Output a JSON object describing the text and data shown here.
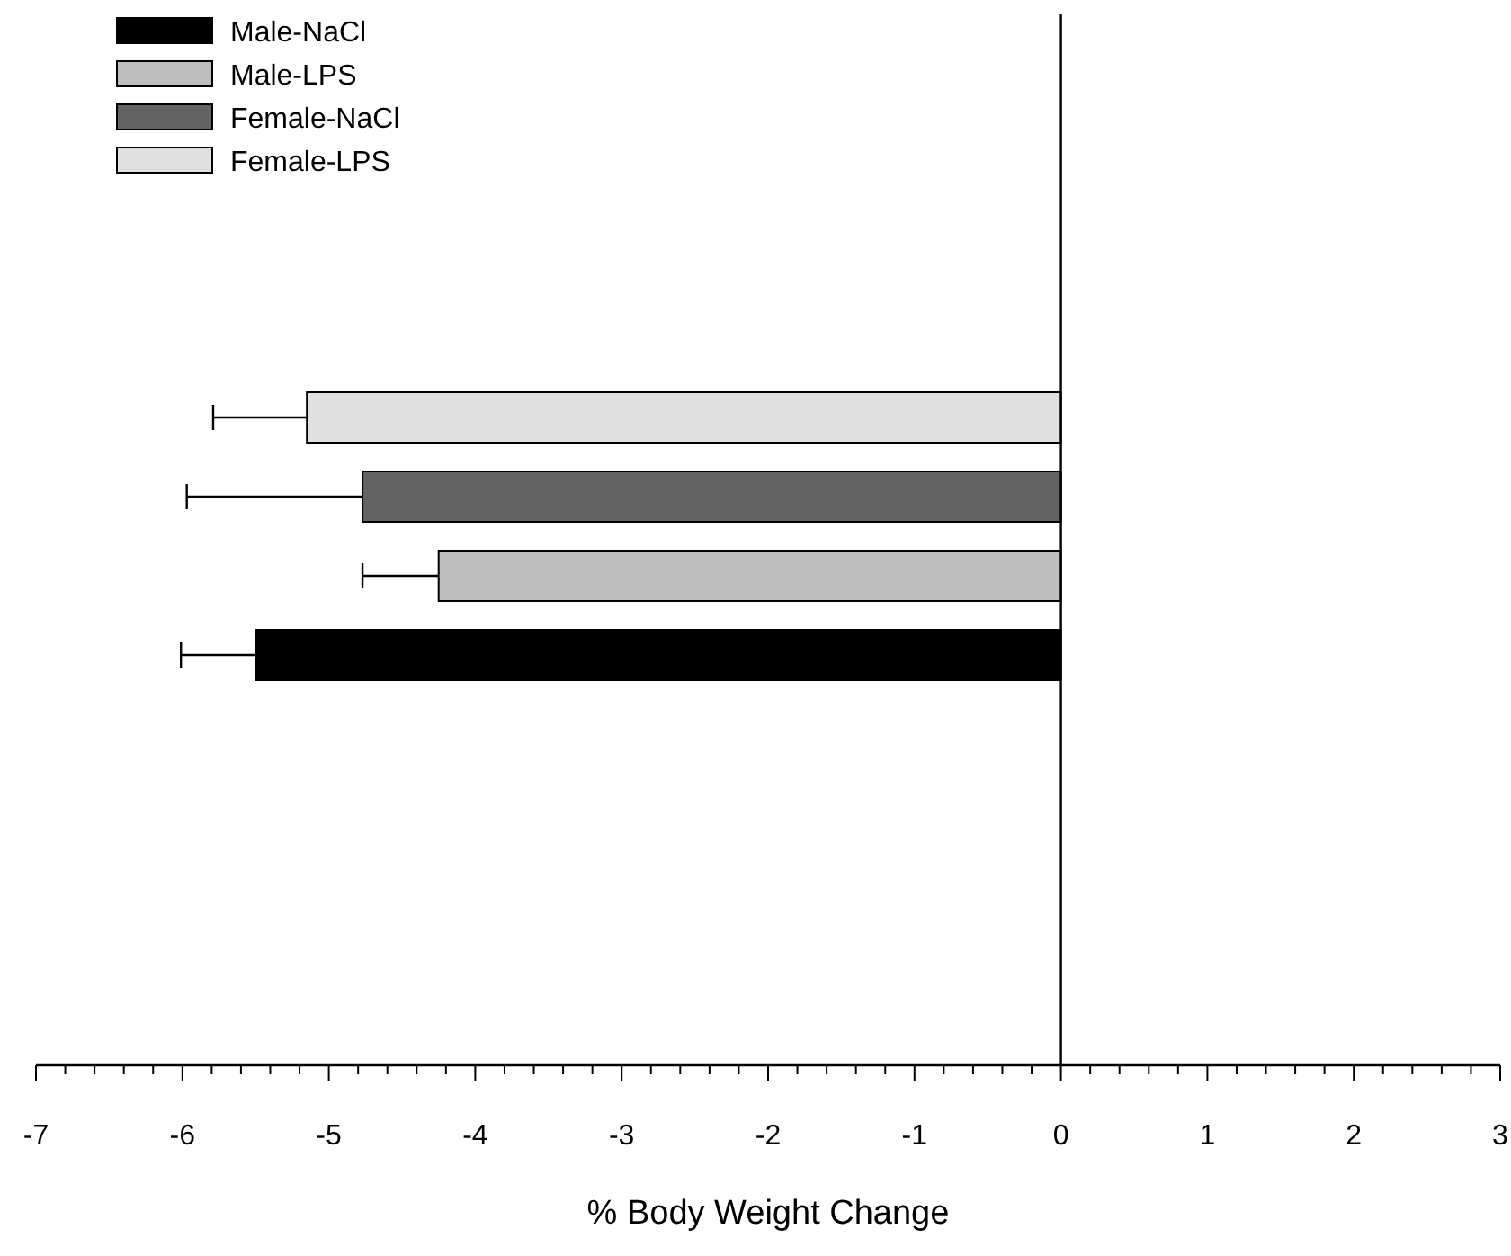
{
  "chart_data": {
    "type": "bar",
    "orientation": "horizontal",
    "xlabel": "% Body Weight Change",
    "categories": [
      null
    ],
    "legend": "top left",
    "xlim": [
      -7,
      3
    ],
    "xticks": [
      -7,
      {
        "value": -6.8,
        "label": null
      },
      {
        "value": -6.6,
        "label": null
      },
      {
        "value": -6.4,
        "label": null
      },
      {
        "value": -6.2,
        "label": null
      },
      -6,
      {
        "value": -5.8,
        "label": null
      },
      {
        "value": -5.6,
        "label": null
      },
      {
        "value": -5.4,
        "label": null
      },
      {
        "value": -5.2,
        "label": null
      },
      -5,
      {
        "value": -4.8,
        "label": null
      },
      {
        "value": -4.6,
        "label": null
      },
      {
        "value": -4.4,
        "label": null
      },
      {
        "value": -4.2,
        "label": null
      },
      -4,
      {
        "value": -3.8,
        "label": null
      },
      {
        "value": -3.6,
        "label": null
      },
      {
        "value": -3.4,
        "label": null
      },
      {
        "value": -3.2,
        "label": null
      },
      -3,
      {
        "value": -2.8,
        "label": null
      },
      {
        "value": -2.6,
        "label": null
      },
      {
        "value": -2.4,
        "label": null
      },
      {
        "value": -2.2,
        "label": null
      },
      -2,
      {
        "value": -1.8,
        "label": null
      },
      {
        "value": -1.6,
        "label": null
      },
      {
        "value": -1.4,
        "label": null
      },
      {
        "value": -1.2,
        "label": null
      },
      -1,
      {
        "value": -0.8,
        "label": null
      },
      {
        "value": -0.6,
        "label": null
      },
      {
        "value": -0.4,
        "label": null
      },
      {
        "value": -0.2,
        "label": null
      },
      0,
      {
        "value": 0.2,
        "label": null
      },
      {
        "value": 0.4,
        "label": null
      },
      {
        "value": 0.6,
        "label": null
      },
      {
        "value": 0.8,
        "label": null
      },
      1,
      {
        "value": 1.2,
        "label": null
      },
      {
        "value": 1.4,
        "label": null
      },
      {
        "value": 1.6,
        "label": null
      },
      {
        "value": 1.8,
        "label": null
      },
      2,
      {
        "value": 2.2,
        "label": null
      },
      {
        "value": 2.4,
        "label": null
      },
      {
        "value": 2.6,
        "label": null
      },
      {
        "value": 2.8,
        "label": null
      },
      3
    ],
    "series": [
      {
        "name": "Male-NaCl",
        "color": "#000000",
        "values": [
          -5.5
        ],
        "errors": [
          [
            -6.01,
            -5.5
          ]
        ]
      },
      {
        "name": "Male-LPS",
        "color": "#bdbdbd",
        "values": [
          -4.25
        ],
        "errors": [
          [
            -4.77,
            -4.25
          ]
        ]
      },
      {
        "name": "Female-NaCl",
        "color": "#636363",
        "values": [
          -4.77
        ],
        "errors": [
          [
            -5.97,
            -4.77
          ]
        ]
      },
      {
        "name": "Female-LPS",
        "color": "#e0e0e0",
        "values": [
          -5.15
        ],
        "errors": [
          [
            -5.79,
            -5.15
          ]
        ]
      }
    ]
  }
}
